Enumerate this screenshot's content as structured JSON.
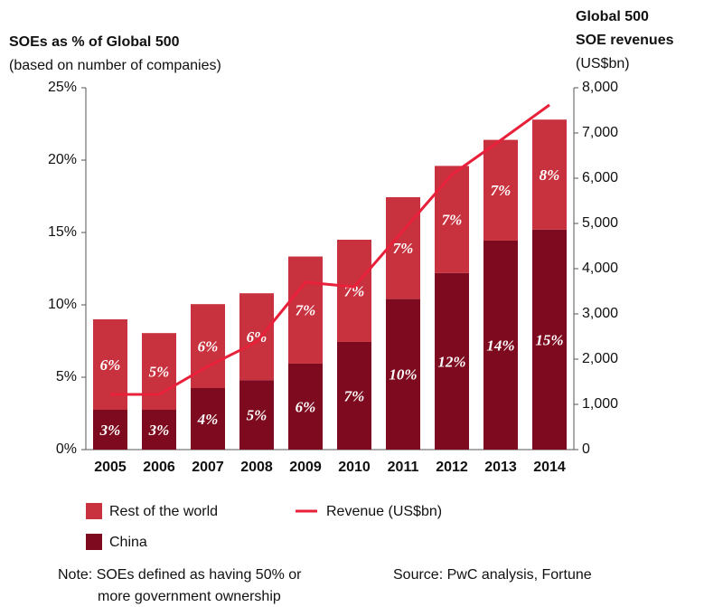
{
  "chart_data": {
    "type": "bar",
    "title": "SOEs as % of Global 500",
    "subtitle": "(based on number of companies)",
    "y2label": [
      "Global 500",
      "SOE revenues"
    ],
    "y2unit": "(US$bn)",
    "categories": [
      "2005",
      "2006",
      "2007",
      "2008",
      "2009",
      "2010",
      "2011",
      "2012",
      "2013",
      "2014"
    ],
    "series": [
      {
        "name": "China",
        "color": "#7d0a1e",
        "values": [
          2.75,
          2.75,
          4.25,
          4.8,
          5.94,
          7.44,
          10.4,
          12.2,
          14.44,
          15.2
        ],
        "value_labels": [
          "3%",
          "3%",
          "4%",
          "5%",
          "6%",
          "7%",
          "10%",
          "12%",
          "14%",
          "15%"
        ]
      },
      {
        "name": "Rest of the world",
        "color": "#c8313e",
        "values": [
          6.25,
          5.3,
          5.8,
          6.0,
          7.4,
          7.06,
          7.04,
          7.4,
          6.96,
          7.6
        ],
        "value_labels": [
          "6%",
          "5%",
          "6%",
          "6%",
          "7%",
          "7%",
          "7%",
          "7%",
          "7%",
          "8%"
        ]
      },
      {
        "name": "Revenue (US$bn)",
        "type": "line",
        "axis": "y2",
        "color": "#e8203a",
        "values": [
          1220,
          1220,
          1840,
          2380,
          3700,
          3600,
          4840,
          6080,
          6840,
          7620
        ]
      }
    ],
    "ylim": [
      0,
      25
    ],
    "yticks": [
      {
        "value": 0,
        "label": "0%"
      },
      {
        "value": 5,
        "label": "5%"
      },
      {
        "value": 10,
        "label": "10%"
      },
      {
        "value": 15,
        "label": "15%"
      },
      {
        "value": 20,
        "label": "20%"
      },
      {
        "value": 25,
        "label": "25%"
      }
    ],
    "y2lim": [
      0,
      8000
    ],
    "y2ticks": [
      0,
      {
        "value": 1000,
        "label": "1,000"
      },
      {
        "value": 2000,
        "label": "2,000"
      },
      {
        "value": 3000,
        "label": "3,000"
      },
      {
        "value": 4000,
        "label": "4,000"
      },
      {
        "value": 5000,
        "label": "5,000"
      },
      {
        "value": 6000,
        "label": "6,000"
      },
      {
        "value": 7000,
        "label": "7,000"
      },
      {
        "value": 8000,
        "label": "8,000"
      }
    ],
    "note": [
      "Note: SOEs defined as having 50% or",
      "more government ownership"
    ],
    "source": "Source: PwC analysis, Fortune"
  }
}
